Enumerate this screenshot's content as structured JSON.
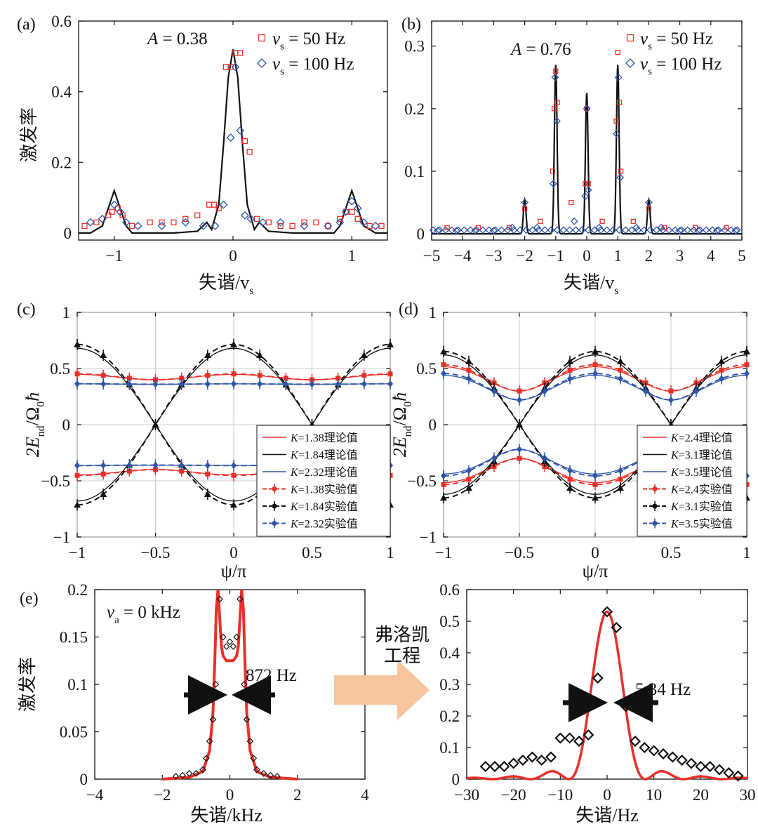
{
  "colors": {
    "red": "#e8302a",
    "black": "#111111",
    "blue": "#2f55a6",
    "arrow": "#f5c9a3"
  },
  "chart_data": [
    {
      "id": "a",
      "panel_label": "(a)",
      "type": "scatter",
      "xlabel": "失谐/v",
      "xlabel_sub": "s",
      "ylabel": "激发率",
      "xlim": [
        -1.3,
        1.3
      ],
      "ylim": [
        -0.02,
        0.6
      ],
      "xticks": [
        -1,
        0,
        1
      ],
      "yticks": [
        0,
        0.2,
        0.4,
        0.6
      ],
      "xtick_labels": [
        "−1",
        "0",
        "1"
      ],
      "ytick_labels": [
        "0",
        "0.2",
        "0.4",
        "0.6"
      ],
      "annotation": "A = 0.38",
      "legend": [
        {
          "label": "v",
          "sub": "s",
          "rest": " = 50 Hz"
        },
        {
          "label": "v",
          "sub": "s",
          "rest": " = 100 Hz"
        }
      ],
      "theory": {
        "x": [
          -1.3,
          -1.2,
          -1.1,
          -1.05,
          -1.0,
          -0.95,
          -0.9,
          -0.85,
          -0.7,
          -0.5,
          -0.3,
          -0.22,
          -0.18,
          -0.12,
          -0.08,
          -0.04,
          0,
          0.04,
          0.08,
          0.12,
          0.18,
          0.22,
          0.3,
          0.5,
          0.7,
          0.85,
          0.9,
          0.95,
          1.0,
          1.05,
          1.1,
          1.2,
          1.3
        ],
        "y": [
          0.0,
          0.0,
          0.02,
          0.07,
          0.12,
          0.07,
          0.02,
          0.0,
          0.0,
          0.0,
          0.005,
          0.03,
          0.01,
          0.08,
          0.25,
          0.44,
          0.52,
          0.44,
          0.25,
          0.08,
          0.01,
          0.03,
          0.005,
          0.0,
          0.0,
          0.0,
          0.02,
          0.07,
          0.12,
          0.07,
          0.02,
          0.0,
          0.0
        ]
      },
      "series": [
        {
          "name": "vs = 50 Hz",
          "marker": "square",
          "color": "red",
          "x": [
            -1.25,
            -1.15,
            -1.05,
            -1.02,
            -0.97,
            -0.93,
            -0.85,
            -0.7,
            -0.6,
            -0.5,
            -0.4,
            -0.3,
            -0.2,
            -0.16,
            -0.12,
            -0.06,
            -0.02,
            0.02,
            0.06,
            0.1,
            0.14,
            0.2,
            0.3,
            0.4,
            0.5,
            0.6,
            0.7,
            0.8,
            0.9,
            0.95,
            1.0,
            1.05,
            1.15,
            1.25
          ],
          "y": [
            0.02,
            0.03,
            0.05,
            0.06,
            0.07,
            0.05,
            0.02,
            0.03,
            0.03,
            0.03,
            0.04,
            0.05,
            0.08,
            0.08,
            0.07,
            0.47,
            0.47,
            0.51,
            0.51,
            0.26,
            0.23,
            0.04,
            0.03,
            0.02,
            0.02,
            0.03,
            0.03,
            0.02,
            0.04,
            0.06,
            0.06,
            0.04,
            0.02,
            0.02
          ]
        },
        {
          "name": "vs = 100 Hz",
          "marker": "diamond",
          "color": "blue",
          "x": [
            -1.2,
            -1.1,
            -1.0,
            -0.95,
            -0.9,
            -0.8,
            -0.6,
            -0.4,
            -0.25,
            -0.15,
            -0.08,
            -0.02,
            0.02,
            0.06,
            0.1,
            0.15,
            0.25,
            0.4,
            0.6,
            0.8,
            0.9,
            0.95,
            1.0,
            1.05,
            1.1,
            1.2
          ],
          "y": [
            0.03,
            0.04,
            0.08,
            0.06,
            0.03,
            0.02,
            0.02,
            0.03,
            0.02,
            0.02,
            0.08,
            0.27,
            0.47,
            0.29,
            0.05,
            0.04,
            0.03,
            0.03,
            0.02,
            0.02,
            0.03,
            0.06,
            0.09,
            0.07,
            0.03,
            0.02
          ]
        }
      ]
    },
    {
      "id": "b",
      "panel_label": "(b)",
      "type": "scatter",
      "xlabel": "失谐/v",
      "xlabel_sub": "s",
      "ylabel": "",
      "xlim": [
        -5,
        5
      ],
      "ylim": [
        -0.01,
        0.34
      ],
      "xticks": [
        -5,
        -4,
        -3,
        -2,
        -1,
        0,
        1,
        2,
        3,
        4,
        5
      ],
      "yticks": [
        0,
        0.1,
        0.2,
        0.3
      ],
      "xtick_labels": [
        "−5",
        "−4",
        "−3",
        "−2",
        "−1",
        "0",
        "1",
        "2",
        "3",
        "4",
        "5"
      ],
      "ytick_labels": [
        "0",
        "0.1",
        "0.2",
        "0.3"
      ],
      "annotation": "A = 0.76",
      "legend": [
        {
          "label": "v",
          "sub": "s",
          "rest": " = 50 Hz"
        },
        {
          "label": "v",
          "sub": "s",
          "rest": " = 100 Hz"
        }
      ],
      "theory": {
        "peaks": [
          {
            "x": -2,
            "h": 0.055
          },
          {
            "x": -1,
            "h": 0.27
          },
          {
            "x": 0,
            "h": 0.225
          },
          {
            "x": 1,
            "h": 0.27
          },
          {
            "x": 2,
            "h": 0.055
          }
        ],
        "width": 0.06
      },
      "series": [
        {
          "name": "vs = 50 Hz",
          "marker": "square",
          "color": "red",
          "x": [
            -4.5,
            -3.5,
            -2.5,
            -2.0,
            -1.5,
            -1.1,
            -1.05,
            -1.0,
            -0.95,
            -0.5,
            -0.05,
            0,
            0.05,
            0.5,
            0.95,
            1.0,
            1.05,
            1.1,
            1.5,
            2.0,
            2.5,
            3.5,
            4.5
          ],
          "y": [
            0.01,
            0.01,
            0.01,
            0.04,
            0.02,
            0.1,
            0.2,
            0.26,
            0.21,
            0.05,
            0.08,
            0.2,
            0.08,
            0.02,
            0.18,
            0.29,
            0.21,
            0.1,
            0.02,
            0.04,
            0.01,
            0.01,
            0.01
          ]
        },
        {
          "name": "vs = 100 Hz",
          "marker": "diamond",
          "color": "blue",
          "x": [
            -4.8,
            -4.2,
            -3.6,
            -3.0,
            -2.4,
            -2.0,
            -1.6,
            -1.08,
            -1.02,
            -0.96,
            -0.4,
            -0.05,
            0,
            0.05,
            0.4,
            0.96,
            1.02,
            1.08,
            1.6,
            2.0,
            2.4,
            3.0,
            3.6,
            4.2,
            4.8
          ],
          "y": [
            0.005,
            0.005,
            0.005,
            0.005,
            0.01,
            0.05,
            0.01,
            0.08,
            0.25,
            0.18,
            0.02,
            0.06,
            0.2,
            0.07,
            0.01,
            0.16,
            0.25,
            0.09,
            0.01,
            0.05,
            0.01,
            0.005,
            0.005,
            0.005,
            0.005
          ]
        }
      ]
    },
    {
      "id": "c",
      "panel_label": "(c)",
      "type": "line",
      "xlabel": "ψ/π",
      "ylabel": "2E",
      "ylabel_sub": "nd",
      "ylabel_rest": "/Ω",
      "ylabel_sub2": "0",
      "ylabel_end": "ħ",
      "xlim": [
        -1,
        1
      ],
      "ylim": [
        -1,
        1
      ],
      "xticks": [
        -1,
        -0.5,
        0,
        0.5,
        1
      ],
      "yticks": [
        -1,
        -0.5,
        0,
        0.5,
        1
      ],
      "xtick_labels": [
        "−1",
        "−0.5",
        "0",
        "0.5",
        "1"
      ],
      "ytick_labels": [
        "−1",
        "−0.5",
        "0",
        "0.5",
        "1"
      ],
      "K_values": [
        1.38,
        1.84,
        2.32
      ],
      "theory_amp": [
        [
          0.4,
          0.2
        ],
        [
          0.0,
          0.68
        ],
        [
          0.36,
          0.05
        ]
      ],
      "legend": [
        "K=1.38理论值",
        "K=1.84理论值",
        "K=2.32理论值",
        "K=1.38实验值",
        "K=1.84实验值",
        "K=2.32实验值"
      ],
      "series_colors": [
        "red",
        "black",
        "blue"
      ]
    },
    {
      "id": "d",
      "panel_label": "(d)",
      "type": "line",
      "xlabel": "ψ/π",
      "ylabel": "2E",
      "ylabel_sub": "nd",
      "ylabel_rest": "/Ω",
      "ylabel_sub2": "0",
      "ylabel_end": "ħ",
      "xlim": [
        -1,
        1
      ],
      "ylim": [
        -1,
        1
      ],
      "xticks": [
        -1,
        -0.5,
        0,
        0.5,
        1
      ],
      "yticks": [
        -1,
        -0.5,
        0,
        0.5,
        1
      ],
      "xtick_labels": [
        "−1",
        "−0.5",
        "0",
        "0.5",
        "1"
      ],
      "ytick_labels": [
        "−1",
        "−0.5",
        "0",
        "0.5",
        "1"
      ],
      "K_values": [
        2.4,
        3.1,
        3.5
      ],
      "theory_amp": [
        [
          0.3,
          0.42
        ],
        [
          0.0,
          0.62
        ],
        [
          0.22,
          0.38
        ]
      ],
      "legend": [
        "K=2.4理论值",
        "K=3.1理论值",
        "K=3.5理论值",
        "K=2.4实验值",
        "K=3.1实验值",
        "K=3.5实验值"
      ],
      "series_colors": [
        "red",
        "black",
        "blue"
      ]
    },
    {
      "id": "e1",
      "panel_label": "(e)",
      "type": "line",
      "xlabel": "失谐/kHz",
      "ylabel": "激发率",
      "xlim": [
        -4,
        4
      ],
      "ylim": [
        0,
        0.2
      ],
      "xticks": [
        -4,
        -2,
        0,
        2,
        4
      ],
      "yticks": [
        0,
        0.05,
        0.1,
        0.15,
        0.2
      ],
      "xtick_labels": [
        "−4",
        "−2",
        "0",
        "2",
        "4"
      ],
      "ytick_labels": [
        "0",
        "0.05",
        "0.1",
        "0.15",
        "0.2"
      ],
      "annotation_va": "v",
      "annotation_va_sub": "a",
      "annotation_va_rest": " = 0 kHz",
      "annotation_width": "872 Hz",
      "theory": {
        "x": [
          -2,
          -1.2,
          -0.8,
          -0.6,
          -0.5,
          -0.45,
          -0.4,
          -0.35,
          -0.3,
          -0.25,
          -0.2,
          -0.1,
          0,
          0.1,
          0.2,
          0.25,
          0.3,
          0.35,
          0.4,
          0.45,
          0.5,
          0.6,
          0.8,
          1.2,
          2
        ],
        "y": [
          0.0,
          0.002,
          0.008,
          0.03,
          0.07,
          0.12,
          0.18,
          0.2,
          0.17,
          0.14,
          0.13,
          0.125,
          0.125,
          0.125,
          0.13,
          0.14,
          0.17,
          0.2,
          0.18,
          0.12,
          0.07,
          0.03,
          0.008,
          0.002,
          0.0
        ]
      },
      "series": [
        {
          "name": "exp",
          "marker": "diamond",
          "color": "black",
          "x": [
            -1.6,
            -1.4,
            -1.2,
            -1.0,
            -0.8,
            -0.7,
            -0.6,
            -0.5,
            -0.42,
            -0.3,
            -0.2,
            -0.1,
            0,
            0.1,
            0.2,
            0.3,
            0.42,
            0.5,
            0.6,
            0.7,
            0.8,
            1.0,
            1.2,
            1.4
          ],
          "y": [
            0.003,
            0.004,
            0.006,
            0.006,
            0.01,
            0.022,
            0.04,
            0.063,
            0.1,
            0.19,
            0.15,
            0.14,
            0.145,
            0.14,
            0.15,
            0.19,
            0.1,
            0.063,
            0.04,
            0.022,
            0.01,
            0.006,
            0.004,
            0.003
          ]
        }
      ]
    },
    {
      "id": "e2",
      "panel_label": "",
      "type": "line",
      "xlabel": "失谐/Hz",
      "ylabel": "",
      "xlim": [
        -30,
        30
      ],
      "ylim": [
        0,
        0.6
      ],
      "xticks": [
        -30,
        -20,
        -10,
        0,
        10,
        20,
        30
      ],
      "yticks": [
        0,
        0.1,
        0.2,
        0.3,
        0.4,
        0.5,
        0.6
      ],
      "xtick_labels": [
        "−30",
        "−20",
        "−10",
        "0",
        "10",
        "20",
        "30"
      ],
      "ytick_labels": [
        "0",
        "0.1",
        "0.2",
        "0.3",
        "0.4",
        "0.5",
        "0.6"
      ],
      "annotation_width": "5.34 Hz",
      "series": [
        {
          "name": "exp",
          "marker": "diamond",
          "color": "black",
          "x": [
            -26,
            -24,
            -22,
            -20,
            -18,
            -16,
            -14,
            -12,
            -10,
            -8,
            -6,
            -4,
            -2,
            0,
            2,
            4,
            6,
            8,
            10,
            12,
            14,
            16,
            18,
            20,
            22,
            24,
            26,
            28
          ],
          "y": [
            0.04,
            0.04,
            0.04,
            0.05,
            0.06,
            0.07,
            0.06,
            0.07,
            0.13,
            0.13,
            0.12,
            0.14,
            0.32,
            0.53,
            0.48,
            0.23,
            0.12,
            0.1,
            0.09,
            0.08,
            0.07,
            0.06,
            0.05,
            0.04,
            0.04,
            0.03,
            0.02,
            0.01
          ]
        }
      ]
    }
  ],
  "arrow_label_line1": "弗洛凯",
  "arrow_label_line2": "工程"
}
